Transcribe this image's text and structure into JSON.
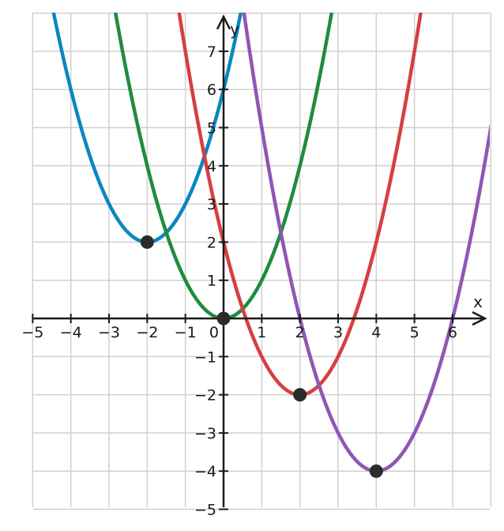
{
  "chart_data": {
    "type": "line",
    "title": "",
    "xlabel": "x",
    "ylabel": "y",
    "xlim": [
      -5,
      7
    ],
    "ylim": [
      -5,
      8
    ],
    "x_ticks": [
      -5,
      -4,
      -3,
      -2,
      -1,
      0,
      1,
      2,
      3,
      4,
      5,
      6
    ],
    "y_ticks": [
      -5,
      -4,
      -3,
      -2,
      -1,
      1,
      2,
      3,
      4,
      5,
      6,
      7
    ],
    "x_tick_labels": [
      "−5",
      "−4",
      "−3",
      "−2",
      "−1",
      "0",
      "1",
      "2",
      "3",
      "4",
      "5",
      "6"
    ],
    "y_tick_labels": [
      "−5",
      "−4",
      "−3",
      "−2",
      "−1",
      "1",
      "2",
      "3",
      "4",
      "5",
      "6",
      "7"
    ],
    "grid": true,
    "series": [
      {
        "color": "#0a87bf",
        "a": 1,
        "h": -2,
        "k": 2
      },
      {
        "color": "#1e8c3e",
        "a": 1,
        "h": 0,
        "k": 0
      },
      {
        "color": "#d63f3f",
        "a": 1,
        "h": 2,
        "k": -2
      },
      {
        "color": "#9055b5",
        "a": 1,
        "h": 4,
        "k": -4
      }
    ],
    "points": [
      {
        "x": -2,
        "y": 2
      },
      {
        "x": 0,
        "y": 0
      },
      {
        "x": 2,
        "y": -2
      },
      {
        "x": 4,
        "y": -4
      }
    ]
  }
}
